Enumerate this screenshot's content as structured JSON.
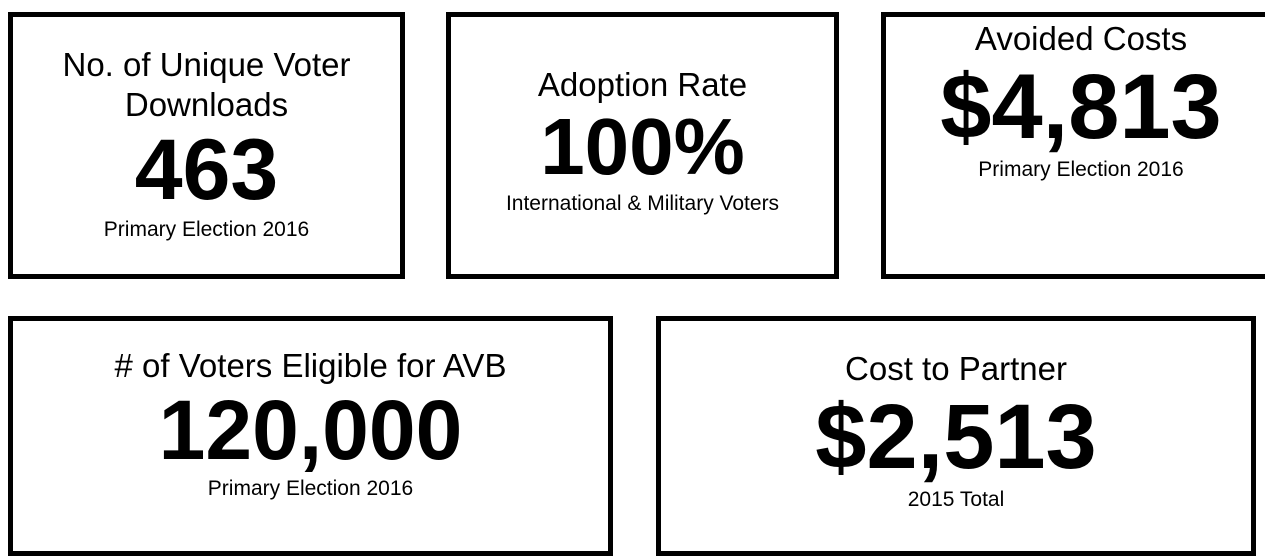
{
  "cards": [
    {
      "title": "No. of Unique Voter Downloads",
      "value": "463",
      "subtitle": "Primary Election 2016"
    },
    {
      "title": "Adoption Rate",
      "value": "100%",
      "subtitle": "International & Military Voters"
    },
    {
      "title": "Avoided Costs",
      "value": "$4,813",
      "subtitle": "Primary Election 2016"
    },
    {
      "title": "# of Voters Eligible for AVB",
      "value": "120,000",
      "subtitle": "Primary Election 2016"
    },
    {
      "title": "Cost to Partner",
      "value": "$2,513",
      "subtitle": "2015 Total"
    }
  ]
}
